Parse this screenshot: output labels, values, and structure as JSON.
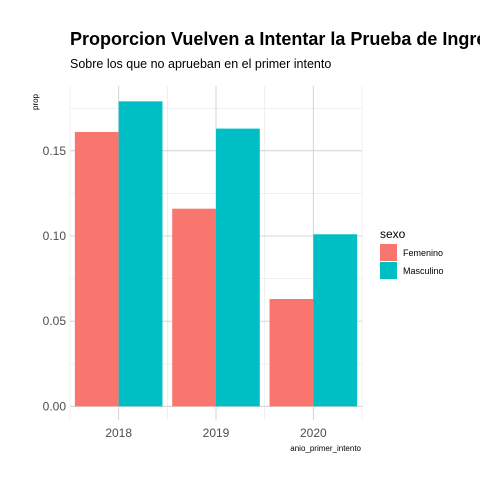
{
  "chart_data": {
    "type": "bar",
    "title": "Proporcion Vuelven a Intentar la Prueba de Ingreso",
    "subtitle": "Sobre los que no aprueban en el primer intento",
    "xlabel": "anio_primer_intento",
    "ylabel": "prop",
    "categories": [
      "2018",
      "2019",
      "2020"
    ],
    "series": [
      {
        "name": "Femenino",
        "color": "#F8766D",
        "values": [
          0.161,
          0.116,
          0.063
        ]
      },
      {
        "name": "Masculino",
        "color": "#00BFC4",
        "values": [
          0.179,
          0.163,
          0.101
        ]
      }
    ],
    "ylim": [
      -0.008,
      0.188
    ],
    "yticks": [
      0.0,
      0.05,
      0.1,
      0.15
    ],
    "ytick_labels": [
      "0.00",
      "0.05",
      "0.10",
      "0.15"
    ],
    "grid": true,
    "legend": {
      "title": "sexo",
      "position": "right"
    }
  }
}
